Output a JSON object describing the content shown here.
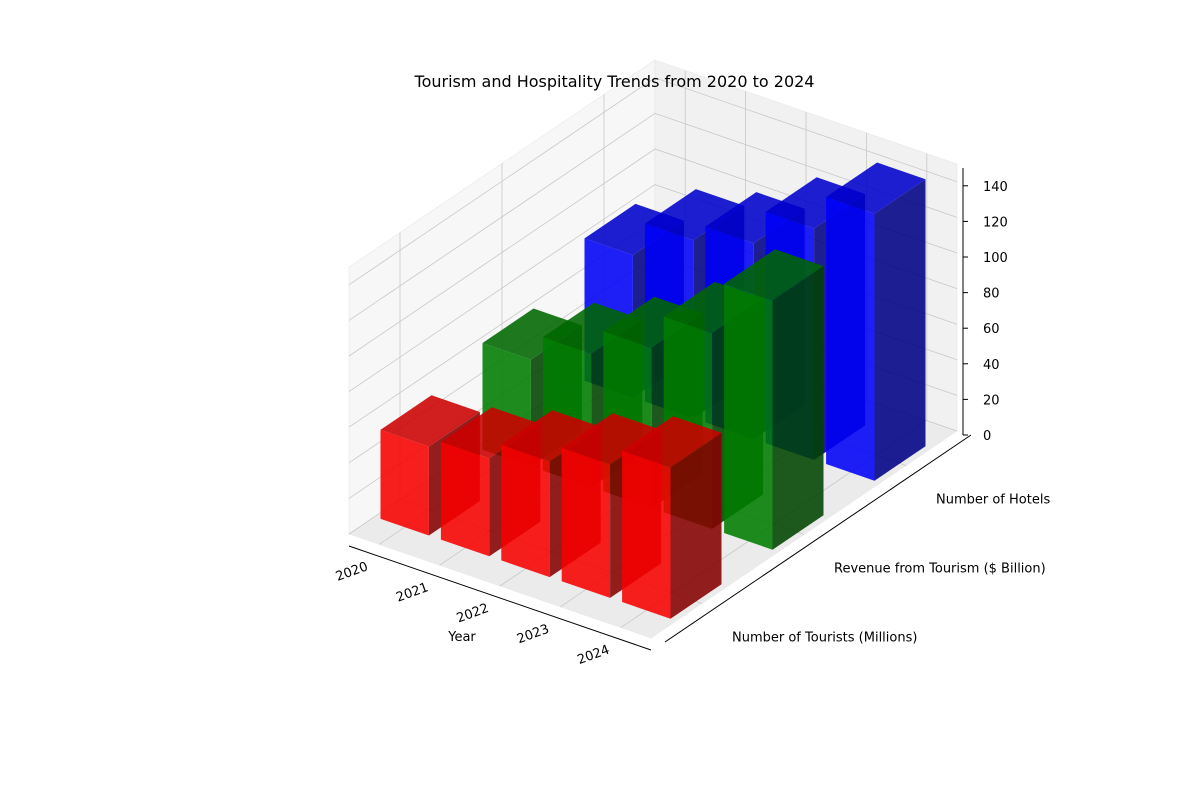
{
  "chart_data": {
    "type": "bar3d",
    "title": "Tourism and Hospitality Trends from 2020 to 2024",
    "xlabel": "Year",
    "ylabel": "",
    "zlabel": "",
    "categories": [
      "2020",
      "2021",
      "2022",
      "2023",
      "2024"
    ],
    "series": [
      {
        "name": "Number of Tourists (Millions)",
        "color": "#ff0000",
        "values": [
          50,
          55,
          65,
          75,
          85
        ]
      },
      {
        "name": "Revenue from Tourism ($ Billion)",
        "color": "#008000",
        "values": [
          60,
          75,
          90,
          110,
          140
        ]
      },
      {
        "name": "Number of Hotels",
        "color": "#0000ff",
        "values": [
          80,
          100,
          110,
          130,
          150
        ]
      }
    ],
    "zticks": [
      0,
      20,
      40,
      60,
      80,
      100,
      120,
      140
    ],
    "zlim": [
      0,
      150
    ],
    "grid": true
  }
}
